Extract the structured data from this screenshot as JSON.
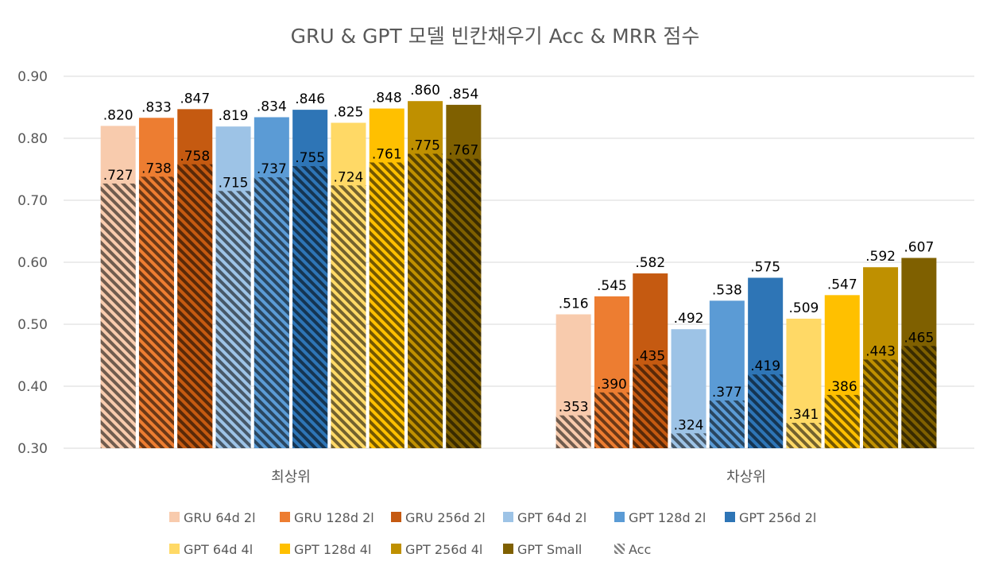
{
  "chart_data": {
    "type": "bar",
    "title": "GRU & GPT 모델 빈칸채우기 Acc & MRR 점수",
    "xlabel": "",
    "ylabel": "",
    "ylim": [
      0.3,
      0.9
    ],
    "yticks": [
      "0.30",
      "0.40",
      "0.50",
      "0.60",
      "0.70",
      "0.80",
      "0.90"
    ],
    "grid": true,
    "legend_position": "bottom",
    "categories": [
      "최상위",
      "차상위"
    ],
    "series": [
      {
        "name": "GRU 64d 2l",
        "color": "#F8CBAD",
        "mrr": [
          0.82,
          0.516
        ],
        "acc": [
          0.727,
          0.353
        ],
        "mrr_labels": [
          ".820",
          ".516"
        ],
        "acc_labels": [
          ".727",
          ".353"
        ]
      },
      {
        "name": "GRU 128d 2l",
        "color": "#ED7D31",
        "mrr": [
          0.833,
          0.545
        ],
        "acc": [
          0.738,
          0.39
        ],
        "mrr_labels": [
          ".833",
          ".545"
        ],
        "acc_labels": [
          ".738",
          ".390"
        ]
      },
      {
        "name": "GRU 256d 2l",
        "color": "#C55A11",
        "mrr": [
          0.847,
          0.582
        ],
        "acc": [
          0.758,
          0.435
        ],
        "mrr_labels": [
          ".847",
          ".582"
        ],
        "acc_labels": [
          ".758",
          ".435"
        ]
      },
      {
        "name": "GPT 64d 2l",
        "color": "#9DC3E6",
        "mrr": [
          0.819,
          0.492
        ],
        "acc": [
          0.715,
          0.324
        ],
        "mrr_labels": [
          ".819",
          ".492"
        ],
        "acc_labels": [
          ".715",
          ".324"
        ]
      },
      {
        "name": "GPT 128d 2l",
        "color": "#5B9BD5",
        "mrr": [
          0.834,
          0.538
        ],
        "acc": [
          0.737,
          0.377
        ],
        "mrr_labels": [
          ".834",
          ".538"
        ],
        "acc_labels": [
          ".737",
          ".377"
        ]
      },
      {
        "name": "GPT 256d 2l",
        "color": "#2E75B6",
        "mrr": [
          0.846,
          0.575
        ],
        "acc": [
          0.755,
          0.419
        ],
        "mrr_labels": [
          ".846",
          ".575"
        ],
        "acc_labels": [
          ".755",
          ".419"
        ]
      },
      {
        "name": "GPT 64d 4l",
        "color": "#FFD966",
        "mrr": [
          0.825,
          0.509
        ],
        "acc": [
          0.724,
          0.341
        ],
        "mrr_labels": [
          ".825",
          ".509"
        ],
        "acc_labels": [
          ".724",
          ".341"
        ]
      },
      {
        "name": "GPT 128d 4l",
        "color": "#FFC000",
        "mrr": [
          0.848,
          0.547
        ],
        "acc": [
          0.761,
          0.386
        ],
        "mrr_labels": [
          ".848",
          ".547"
        ],
        "acc_labels": [
          ".761",
          ".386"
        ]
      },
      {
        "name": "GPT 256d 4l",
        "color": "#BF9000",
        "mrr": [
          0.86,
          0.592
        ],
        "acc": [
          0.775,
          0.443
        ],
        "mrr_labels": [
          ".860",
          ".592"
        ],
        "acc_labels": [
          ".775",
          ".443"
        ]
      },
      {
        "name": "GPT Small",
        "color": "#7F6000",
        "mrr": [
          0.854,
          0.607
        ],
        "acc": [
          0.767,
          0.465
        ],
        "mrr_labels": [
          ".854",
          ".607"
        ],
        "acc_labels": [
          ".767",
          ".465"
        ]
      }
    ],
    "acc_legend": "Acc",
    "colors": {
      "grid": "#D9D9D9",
      "text": "#595959",
      "hatch": "#000000"
    }
  }
}
